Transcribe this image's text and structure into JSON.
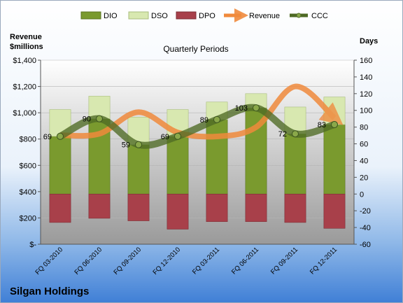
{
  "chart_data": {
    "type": "bar",
    "title": "Quarterly Periods",
    "company": "Silgan Holdings",
    "left_axis_label_line1": "Revenue",
    "left_axis_label_line2": "$millions",
    "right_axis_label": "Days",
    "categories": [
      "FQ 03-2010",
      "FQ 06-2010",
      "FQ 09-2010",
      "FQ 12-2010",
      "FQ 03-2011",
      "FQ 06-2011",
      "FQ 09-2011",
      "FQ 12-2011"
    ],
    "left_ylim": [
      0,
      1400
    ],
    "left_ticks": [
      "$-",
      "$200",
      "$400",
      "$600",
      "$800",
      "$1,000",
      "$1,200",
      "$1,400"
    ],
    "right_ylim": [
      -60,
      160
    ],
    "right_ticks": [
      "-60",
      "-40",
      "-20",
      "0",
      "20",
      "40",
      "60",
      "80",
      "100",
      "120",
      "140",
      "160"
    ],
    "legend_position": "top",
    "series": [
      {
        "name": "DIO",
        "axis": "right",
        "kind": "stacked-bar",
        "color": "#7a9a2e",
        "values": [
          69,
          90,
          59,
          69,
          89,
          103,
          72,
          83
        ]
      },
      {
        "name": "DSO",
        "axis": "right",
        "kind": "stacked-bar",
        "color": "#d8e8b0",
        "values": [
          32,
          27,
          33,
          32,
          21,
          17,
          32,
          33
        ]
      },
      {
        "name": "DPO",
        "axis": "right",
        "kind": "bar",
        "color": "#a8404a",
        "values": [
          -34,
          -29,
          -32,
          -42,
          -33,
          -33,
          -34,
          -41
        ]
      },
      {
        "name": "Revenue",
        "axis": "left",
        "kind": "line",
        "color": "#f08a3c",
        "values": [
          830,
          840,
          1005,
          850,
          820,
          890,
          1200,
          960
        ]
      },
      {
        "name": "CCC",
        "axis": "right",
        "kind": "line",
        "color": "#4e6a24",
        "values": [
          69,
          90,
          59,
          69,
          89,
          103,
          72,
          83
        ],
        "labels": [
          "69",
          "90",
          "59",
          "69",
          "89",
          "103",
          "72",
          "83"
        ]
      }
    ]
  }
}
